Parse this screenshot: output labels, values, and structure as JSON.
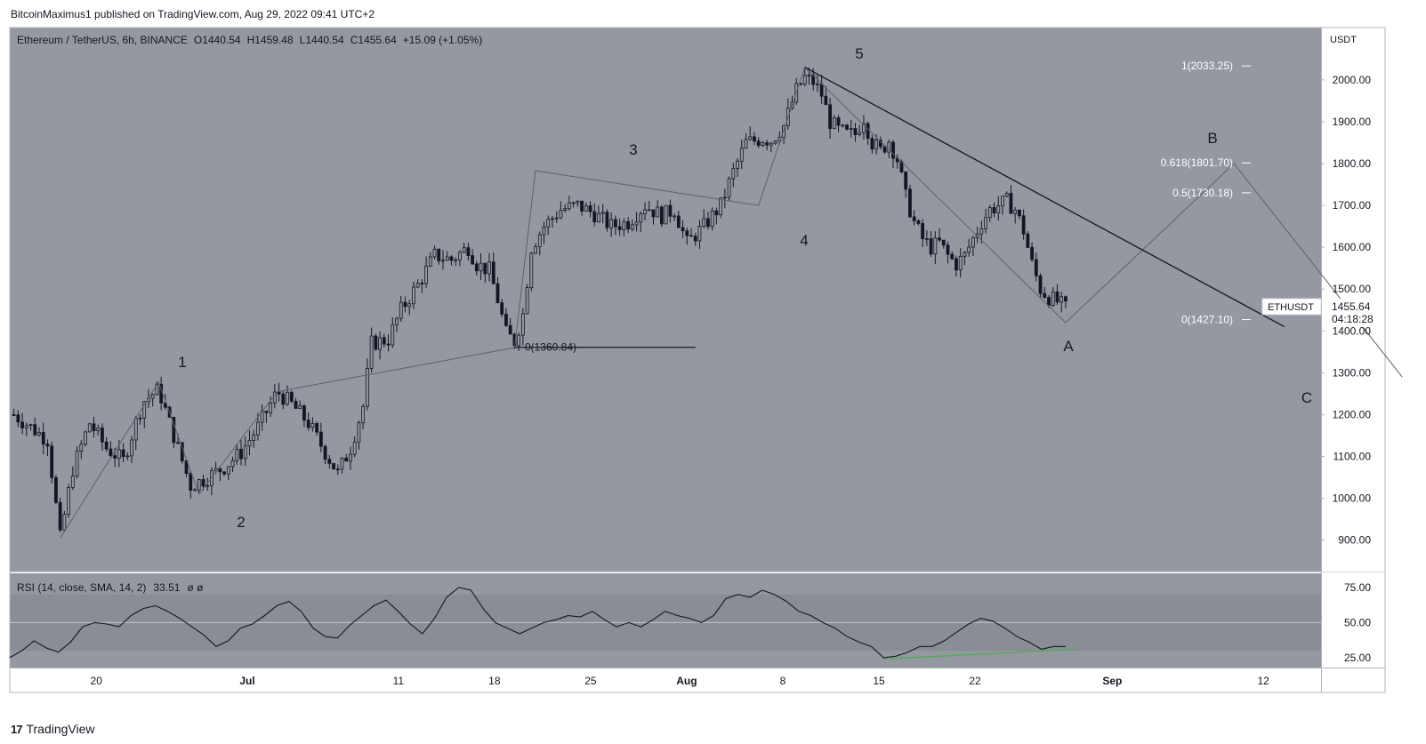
{
  "publisher_line": "BitcoinMaximus1 published on TradingView.com, Aug 29, 2022 09:41 UTC+2",
  "footer": {
    "brand": "TradingView",
    "logo_text": "17"
  },
  "colors": {
    "pane_bg": "#9598a1",
    "rsi_band": "#8a8d95",
    "candle": "#131722",
    "divergence": "#4caf50",
    "page_bg": "#ffffff"
  },
  "chart_data": [
    {
      "type": "candlestick",
      "symbol_line": {
        "name": "Ethereum / TetherUS, 6h, BINANCE",
        "o_label": "O",
        "o": "1440.54",
        "h_label": "H",
        "h": "1459.48",
        "l_label": "L",
        "l": "1440.54",
        "c_label": "C",
        "c": "1455.64",
        "change": "+15.09 (+1.05%)"
      },
      "currency": "USDT",
      "y_ticks": [
        "2000.00",
        "1900.00",
        "1800.00",
        "1700.00",
        "1600.00",
        "1500.00",
        "1400.00",
        "1300.00",
        "1200.00",
        "1100.00",
        "1000.00",
        "900.00"
      ],
      "y_tick_values": [
        2000,
        1900,
        1800,
        1700,
        1600,
        1500,
        1400,
        1300,
        1200,
        1100,
        1000,
        900
      ],
      "ylim": [
        825,
        2125
      ],
      "x_ticks": [
        "20",
        "Jul",
        "11",
        "18",
        "25",
        "Aug",
        "8",
        "15",
        "22",
        "Sep",
        "12"
      ],
      "x_tick_days": [
        1,
        12,
        23,
        30,
        37,
        44,
        51,
        58,
        65,
        75,
        86
      ],
      "x_day_range": [
        -5.3,
        90.2
      ],
      "x_note": "days from Jun 19, 2022",
      "price_path": [
        [
          -5,
          1200
        ],
        [
          -1,
          1140
        ],
        [
          0.5,
          905
        ],
        [
          2,
          1070
        ],
        [
          4,
          1180
        ],
        [
          6,
          1120
        ],
        [
          8,
          1090
        ],
        [
          10.3,
          1230
        ],
        [
          12.2,
          1260
        ],
        [
          14,
          1150
        ],
        [
          16,
          1030
        ],
        [
          18,
          1050
        ],
        [
          20,
          1075
        ],
        [
          22,
          1110
        ],
        [
          24,
          1170
        ],
        [
          26.3,
          1255
        ],
        [
          28,
          1225
        ],
        [
          30,
          1180
        ],
        [
          32,
          1110
        ],
        [
          33.5,
          1060
        ],
        [
          35,
          1120
        ],
        [
          36.5,
          1220
        ],
        [
          37.5,
          1370
        ],
        [
          39.5,
          1380
        ],
        [
          41,
          1450
        ],
        [
          43,
          1510
        ],
        [
          45,
          1580
        ],
        [
          47,
          1570
        ],
        [
          49,
          1600
        ],
        [
          50,
          1560
        ],
        [
          51.5,
          1545
        ],
        [
          52.5,
          1475
        ],
        [
          53.5,
          1395
        ],
        [
          54.5,
          1375
        ],
        [
          55.5,
          1440
        ],
        [
          56.5,
          1600
        ],
        [
          58,
          1650
        ],
        [
          60,
          1690
        ],
        [
          62,
          1700
        ],
        [
          64,
          1680
        ],
        [
          66,
          1650
        ],
        [
          68,
          1660
        ],
        [
          70,
          1700
        ],
        [
          72,
          1675
        ],
        [
          73.5,
          1690
        ],
        [
          75,
          1610
        ],
        [
          77,
          1650
        ],
        [
          79,
          1700
        ],
        [
          80.5,
          1780
        ],
        [
          82,
          1850
        ],
        [
          84,
          1860
        ],
        [
          85,
          1855
        ],
        [
          86.5,
          1890
        ],
        [
          88,
          1975
        ],
        [
          89,
          2005
        ],
        [
          90,
          1995
        ],
        [
          91,
          1965
        ],
        [
          92,
          1900
        ],
        [
          93,
          1880
        ],
        [
          94,
          1870
        ],
        [
          95,
          1870
        ],
        [
          96,
          1910
        ],
        [
          97,
          1850
        ],
        [
          98,
          1830
        ],
        [
          99,
          1855
        ],
        [
          100,
          1810
        ],
        [
          101,
          1720
        ],
        [
          102,
          1660
        ],
        [
          103,
          1620
        ],
        [
          104,
          1600
        ],
        [
          105,
          1610
        ],
        [
          106,
          1580
        ],
        [
          107,
          1560
        ],
        [
          108,
          1580
        ],
        [
          109,
          1620
        ],
        [
          110,
          1660
        ],
        [
          111,
          1690
        ],
        [
          112,
          1700
        ],
        [
          113,
          1710
        ],
        [
          114,
          1690
        ],
        [
          115,
          1640
        ],
        [
          116,
          1560
        ],
        [
          117,
          1500
        ],
        [
          118,
          1480
        ],
        [
          119,
          1470
        ],
        [
          120,
          1455
        ]
      ],
      "marker_pos": "bottom",
      "rsi": {
        "label": "RSI (14, close, SMA, 14, 2)",
        "value": "33.51",
        "extra": "ø ø",
        "y_ticks": [
          "75.00",
          "50.00",
          "25.00"
        ],
        "y_tick_values": [
          75,
          50,
          25
        ],
        "ylim": [
          18,
          85
        ],
        "band": [
          30,
          70
        ],
        "values": [
          25,
          30,
          37,
          32,
          29,
          36,
          47,
          50,
          49,
          47,
          55,
          60,
          62,
          58,
          53,
          47,
          41,
          33,
          37,
          46,
          49,
          55,
          62,
          65,
          58,
          46,
          40,
          39,
          48,
          55,
          62,
          66,
          58,
          49,
          42,
          53,
          68,
          75,
          73,
          60,
          50,
          46,
          42,
          46,
          50,
          52,
          55,
          54,
          58,
          52,
          47,
          50,
          47,
          52,
          58,
          55,
          53,
          50,
          55,
          67,
          70,
          68,
          73,
          70,
          65,
          58,
          55,
          50,
          46,
          40,
          36,
          33,
          25,
          26,
          29,
          33,
          33,
          37,
          43,
          49,
          53,
          51,
          46,
          40,
          36,
          31,
          33,
          33
        ]
      },
      "wave_labels": [
        "1",
        "2",
        "3",
        "4",
        "5",
        "A",
        "B",
        "C"
      ],
      "fib_labels": {
        "fib_1": "1(2033.25)",
        "fib_0618": "0.618(1801.70)",
        "fib_05": "0.5(1730.18)",
        "fib_0_right": "0(1427.10)",
        "fib_0_left": "0(1360.84)"
      },
      "fib_values": {
        "fib_1": 2033.25,
        "fib_0618": 1801.7,
        "fib_05": 1730.18,
        "fib_0_right": 1427.1,
        "fib_0_left": 1360.84
      },
      "price_tag": {
        "symbol": "ETHUSDT",
        "price": "1455.64",
        "countdown": "04:18:28"
      }
    }
  ]
}
